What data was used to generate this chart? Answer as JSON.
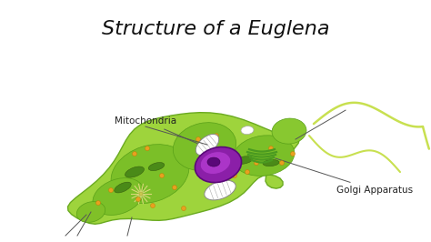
{
  "title": "Structure of a Euglena",
  "title_fontsize": 16,
  "title_bg_color": "#b8b8b8",
  "title_text_color": "#111111",
  "bg_color": "#ffffff",
  "label_mitochondria": "Mitochondria",
  "label_golgi": "Golgi Apparatus",
  "label_fontsize": 7.5,
  "label_color": "#222222",
  "body_color": "#9ed43c",
  "body_edge": "#6aaa20",
  "body_inner": "#7bbf28",
  "nucleus_outer": "#7b1fa2",
  "nucleus_inner": "#9c27b0",
  "nucleolus": "#4a0072",
  "flagellum_color": "#c8e050",
  "line_color": "#555555",
  "dot_color": "#e8a020",
  "dot_edge": "#c07800",
  "chloro_fill": "#f0f0e8",
  "chloro_edge": "#909090",
  "starburst_color": "#e8e8a0",
  "golgi_color": "#4a9a20"
}
